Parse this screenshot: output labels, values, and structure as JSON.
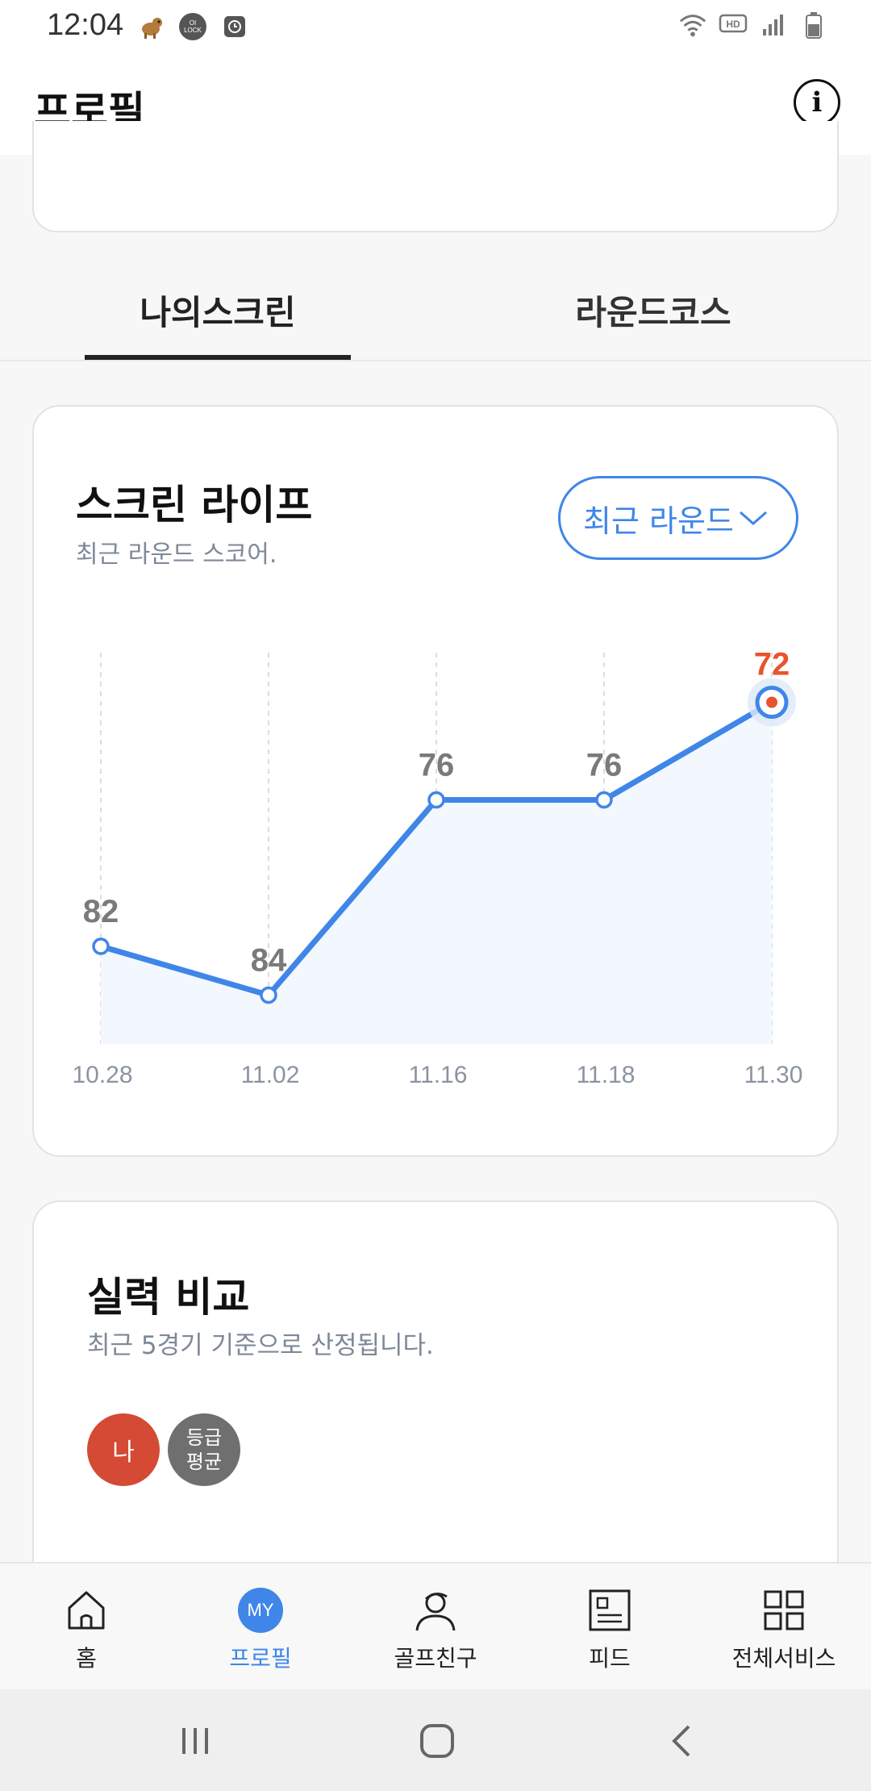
{
  "status_bar": {
    "time": "12:04"
  },
  "header": {
    "title": "프로필",
    "info_icon": "i"
  },
  "tabs": [
    {
      "label": "나의스크린",
      "active": true
    },
    {
      "label": "라운드코스",
      "active": false
    }
  ],
  "screen_life": {
    "title": "스크린 라이프",
    "subtitle": "최근 라운드 스코어.",
    "dropdown_label": "최근 라운드"
  },
  "chart_data": {
    "type": "line",
    "categories": [
      "10.28",
      "11.02",
      "11.16",
      "11.18",
      "11.30"
    ],
    "values": [
      82,
      84,
      76,
      76,
      72
    ],
    "highlight_index": 4,
    "ylim": [
      70,
      86
    ],
    "colors": {
      "line": "#3f86e8",
      "highlight": "#e9532e",
      "label": "#7a7a7a",
      "area": "#f3f8fe"
    }
  },
  "compare": {
    "title": "실력 비교",
    "subtitle": "최근 5경기 기준으로 산정됩니다.",
    "badge_me": "나",
    "badge_avg_line1": "등급",
    "badge_avg_line2": "평균"
  },
  "bottom_nav": [
    {
      "label": "홈",
      "icon": "home-icon"
    },
    {
      "label": "프로필",
      "icon": "my-badge-icon",
      "badge": "MY",
      "active": true
    },
    {
      "label": "골프친구",
      "icon": "golfer-icon"
    },
    {
      "label": "피드",
      "icon": "feed-icon"
    },
    {
      "label": "전체서비스",
      "icon": "grid-icon"
    }
  ]
}
